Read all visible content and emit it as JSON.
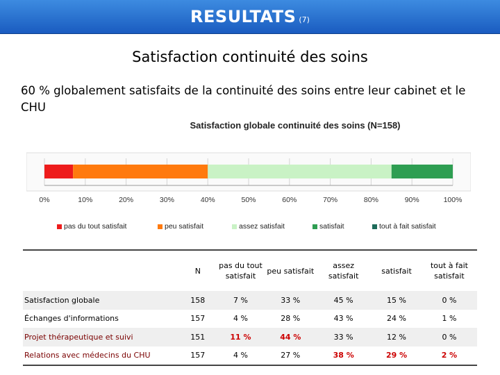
{
  "slide": {
    "title": "RESULTATS",
    "title_suffix": "(7)",
    "subtitle": "Satisfaction continuité des soins",
    "summary": "60 % globalement satisfaits de la continuité des soins entre leur cabinet et le CHU"
  },
  "chart_data": {
    "type": "bar",
    "orientation": "horizontal-stacked-100",
    "title": "Satisfaction globale continuité des soins (N=158)",
    "xlim": [
      0,
      100
    ],
    "x_ticks": [
      "0%",
      "10%",
      "20%",
      "30%",
      "40%",
      "50%",
      "60%",
      "70%",
      "80%",
      "90%",
      "100%"
    ],
    "grid": true,
    "legend": "bottom",
    "series": [
      {
        "name": "pas du tout satisfait",
        "values": [
          7
        ],
        "color": "#ee1c1c"
      },
      {
        "name": "peu satisfait",
        "values": [
          33
        ],
        "color": "#ff7a0e"
      },
      {
        "name": "assez satisfait",
        "values": [
          45
        ],
        "color": "#c9f2c5"
      },
      {
        "name": "satisfait",
        "values": [
          15
        ],
        "color": "#2e9e52"
      },
      {
        "name": "tout à fait satisfait",
        "values": [
          0
        ],
        "color": "#1d6b5a"
      }
    ]
  },
  "table": {
    "headers": [
      "",
      "N",
      "pas du tout satisfait",
      "peu satisfait",
      "assez satisfait",
      "satisfait",
      "tout à fait satisfait"
    ],
    "rows": [
      {
        "label": "Satisfaction globale",
        "cells": [
          "158",
          "7 %",
          "33 %",
          "45 %",
          "15 %",
          "0 %"
        ],
        "highlight": []
      },
      {
        "label": "Échanges d'informations",
        "cells": [
          "157",
          "4 %",
          "28 %",
          "43 %",
          "24 %",
          "1 %"
        ],
        "highlight": []
      },
      {
        "label": "Projet thérapeutique et suivi",
        "cells": [
          "151",
          "11 %",
          "44 %",
          "33 %",
          "12 %",
          "0 %"
        ],
        "highlight": [
          1,
          2
        ]
      },
      {
        "label": "Relations avec médecins du CHU",
        "cells": [
          "157",
          "4 %",
          "27 %",
          "38 %",
          "29 %",
          "2 %"
        ],
        "highlight": [
          3,
          4,
          5
        ]
      }
    ],
    "highlight_color": "#cc0000"
  }
}
